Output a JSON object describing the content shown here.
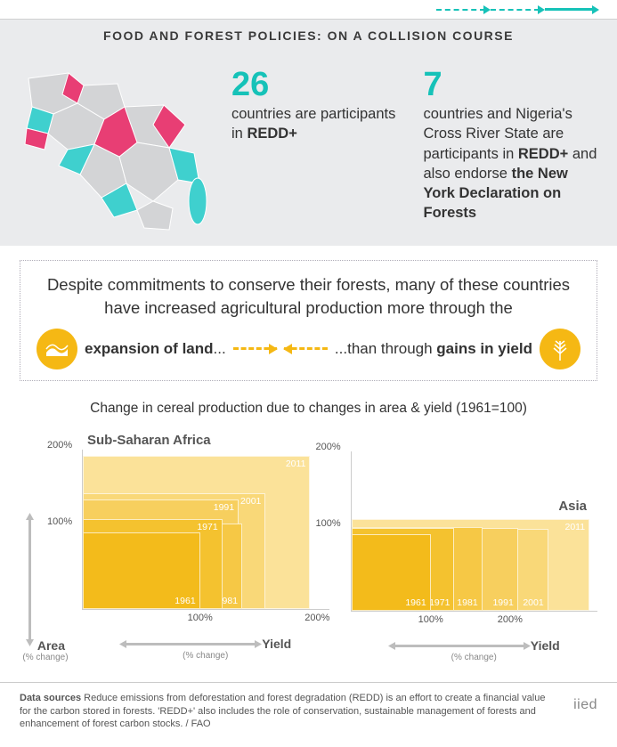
{
  "header": {
    "title": "FOOD AND FOREST POLICIES: ON A COLLISION COURSE"
  },
  "hero": {
    "map_colors": {
      "base": "#d3d4d6",
      "teal": "#3fd0ce",
      "pink": "#e83e74"
    },
    "stat1": {
      "num": "26",
      "text_pre": "countries are participants in ",
      "text_strong": "REDD+"
    },
    "stat2": {
      "num": "7",
      "text_pre": "countries and Nigeria's Cross River State are participants in ",
      "text_mid_strong": "REDD+",
      "text_mid": " and also endorse ",
      "text_end_strong": "the New York Declaration on Forests"
    }
  },
  "callout": {
    "lead": "Despite commitments to conserve their forests, many of these countries have increased agricultural production more through the",
    "left_strong": "expansion of land",
    "left_tail": "...",
    "right_pre": "...than through ",
    "right_strong": "gains in yield",
    "icon_color": "#f5b814"
  },
  "charts": {
    "title": "Change in cereal production due to changes in area & yield (1961=100)",
    "ylabel": "Area",
    "ylabel_sub": "(% change)",
    "xlabel": "Yield",
    "xlabel_sub": "(% change)",
    "yticks": [
      100,
      200
    ],
    "xticks": [
      100,
      200
    ],
    "ymax": 210,
    "xmax_ssa": 210,
    "xmax_asia": 310,
    "palette": [
      "#f3bb1b",
      "#f4c22f",
      "#f6c845",
      "#f7cf5e",
      "#f9d878",
      "#fbe299"
    ],
    "regions": [
      {
        "name": "Sub-Saharan Africa",
        "xmax": 210,
        "boxes": [
          {
            "year": "1961",
            "yield": 100,
            "area": 100,
            "yr_pos": "br"
          },
          {
            "year": "1971",
            "yield": 119,
            "area": 118,
            "yr_pos": "tr"
          },
          {
            "year": "1981",
            "yield": 136,
            "area": 112,
            "yr_pos": "br"
          },
          {
            "year": "1991",
            "yield": 133,
            "area": 143,
            "yr_pos": "tr"
          },
          {
            "year": "2001",
            "yield": 156,
            "area": 152,
            "yr_pos": "tr"
          },
          {
            "year": "2011",
            "yield": 194,
            "area": 200,
            "yr_pos": "tr"
          }
        ]
      },
      {
        "name": "Asia",
        "xmax": 310,
        "boxes": [
          {
            "year": "1961",
            "yield": 100,
            "area": 100,
            "yr_pos": "br"
          },
          {
            "year": "1971",
            "yield": 130,
            "area": 108,
            "yr_pos": "br"
          },
          {
            "year": "1981",
            "yield": 165,
            "area": 110,
            "yr_pos": "br"
          },
          {
            "year": "1991",
            "yield": 210,
            "area": 108,
            "yr_pos": "br"
          },
          {
            "year": "2001",
            "yield": 248,
            "area": 107,
            "yr_pos": "br"
          },
          {
            "year": "2011",
            "yield": 300,
            "area": 120,
            "yr_pos": "tr"
          }
        ]
      }
    ]
  },
  "footer": {
    "label": "Data sources",
    "text": " Reduce emissions from deforestation and forest degradation (REDD) is an effort to create a financial value for the carbon stored in forests. 'REDD+' also includes the role of conservation, sustainable management of forests and enhancement of forest carbon stocks. / FAO",
    "logo": "iied"
  }
}
